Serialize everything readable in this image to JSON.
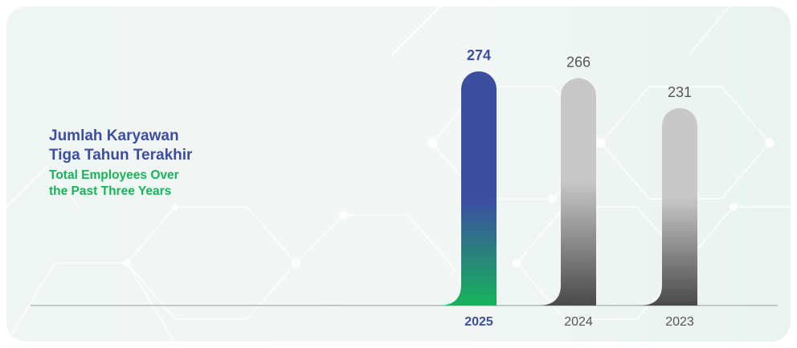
{
  "title": {
    "id": "Jumlah Karyawan\nTiga Tahun Terakhir",
    "en": "Total Employees Over\nthe Past Three Years"
  },
  "colors": {
    "highlight_top": "#3d4ea1",
    "highlight_bottom": "#17b35a",
    "grey_top": "#c8c8c8",
    "grey_bottom": "#4a4a4a",
    "highlight_text": "#3d4ea1",
    "grey_text": "#555555",
    "baseline": "#a8aeb0"
  },
  "chart_data": {
    "type": "bar",
    "categories": [
      "2025",
      "2024",
      "2023"
    ],
    "values": [
      274,
      266,
      231
    ],
    "highlight_index": 0,
    "title": "Jumlah Karyawan Tiga Tahun Terakhir / Total Employees Over the Past Three Years",
    "xlabel": "",
    "ylabel": "",
    "grid": false,
    "legend": "none"
  }
}
